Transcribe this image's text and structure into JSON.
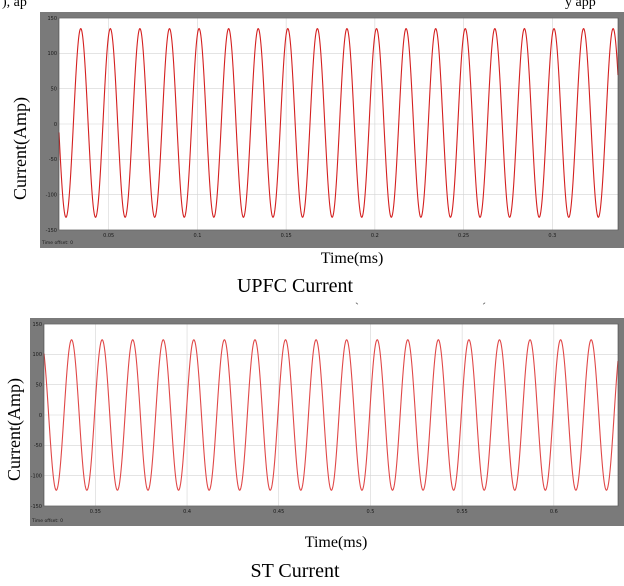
{
  "top_text": {
    "left": "), ap",
    "right": "y app"
  },
  "chart_data": [
    {
      "type": "line",
      "caption": "UPFC Current",
      "xlabel": "Time(ms)",
      "ylabel": "Current(Amp)",
      "yticks": [
        "150",
        "100",
        "50",
        "0",
        "-50",
        "-100",
        "-150"
      ],
      "ytick_values": [
        150,
        100,
        50,
        0,
        -50,
        -100,
        -150
      ],
      "ylim": [
        -150,
        150
      ],
      "xticks": [
        "0.05",
        "0.1",
        "0.15",
        "0.2",
        "0.25",
        "0.3"
      ],
      "xtick_values": [
        0.05,
        0.1,
        0.15,
        0.2,
        0.25,
        0.3
      ],
      "xlim": [
        0.022,
        0.337
      ],
      "offset_label": "Time offset:  0",
      "grid": true,
      "line_color": "#d42020",
      "series": [
        {
          "amplitude": 127,
          "peak": 135,
          "trough": -132,
          "frequency_per_unit": 60,
          "phase_deg": 70
        }
      ]
    },
    {
      "type": "line",
      "caption": "ST Current",
      "xlabel": "Time(ms)",
      "ylabel": "Current(Amp)",
      "yticks": [
        "150",
        "100",
        "50",
        "0",
        "-50",
        "-100",
        "-150"
      ],
      "ytick_values": [
        150,
        100,
        50,
        0,
        -50,
        -100,
        -150
      ],
      "ylim": [
        -150,
        150
      ],
      "xticks": [
        "0.35",
        "0.4",
        "0.45",
        "0.5",
        "0.55",
        "0.6"
      ],
      "xtick_values": [
        0.35,
        0.4,
        0.45,
        0.5,
        0.55,
        0.6
      ],
      "xlim": [
        0.322,
        0.635
      ],
      "offset_label": "Time offset:  0",
      "grid": true,
      "line_color": "#e04848",
      "series": [
        {
          "amplitude": 124,
          "peak": 124,
          "trough": -124,
          "frequency_per_unit": 60,
          "phase_deg": 10
        }
      ]
    }
  ],
  "colors": {
    "frame": "#7a7a7a",
    "plot_bg": "#ffffff",
    "grid": "#d4d4d4"
  }
}
